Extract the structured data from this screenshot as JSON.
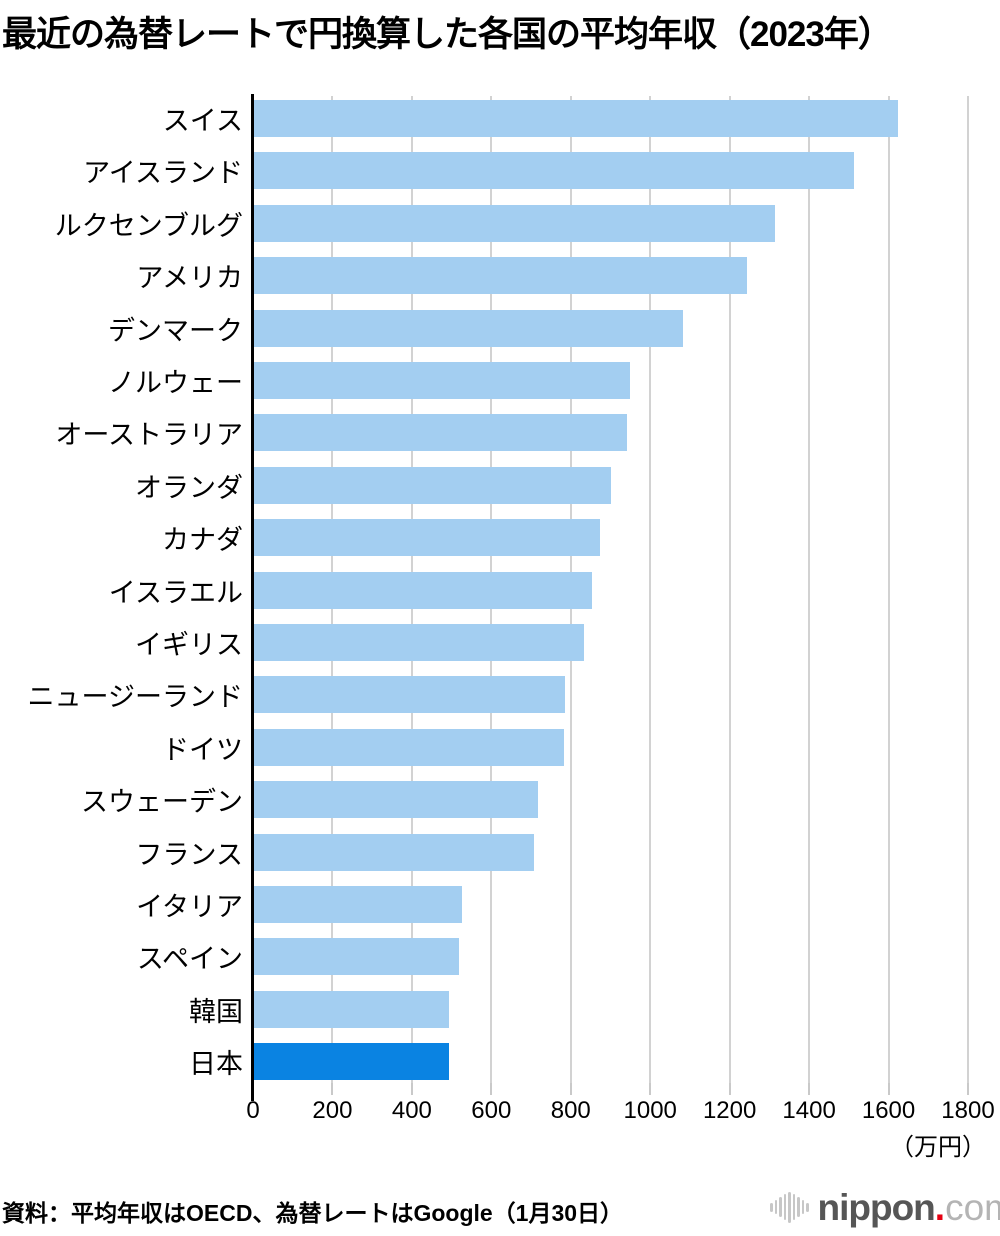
{
  "title": "最近の為替レートで円換算した各国の平均年収（2023年）",
  "source": {
    "text": "資料：平均年収はOECD、為替レートはGoogle（1月30日）"
  },
  "logo": {
    "name": "nippon",
    "dot": ".",
    "tld": "com",
    "icon": "waveform-icon"
  },
  "chart_data": {
    "type": "bar",
    "orientation": "horizontal",
    "title": "最近の為替レートで円換算した各国の平均年収（2023年）",
    "unit": "万円",
    "unit_label": "（万円）",
    "xlim": [
      0,
      1800
    ],
    "xticks": [
      0,
      200,
      400,
      600,
      800,
      1000,
      1200,
      1400,
      1600,
      1800
    ],
    "grid": true,
    "categories": [
      "スイス",
      "アイスランド",
      "ルクセンブルグ",
      "アメリカ",
      "デンマーク",
      "ノルウェー",
      "オーストラリア",
      "オランダ",
      "カナダ",
      "イスラエル",
      "イギリス",
      "ニュージーランド",
      "ドイツ",
      "スウェーデン",
      "フランス",
      "イタリア",
      "スペイン",
      "韓国",
      "日本"
    ],
    "values": [
      1620,
      1510,
      1311,
      1242,
      1079,
      947,
      940,
      898,
      871,
      850,
      831,
      784,
      781,
      714,
      706,
      524,
      517,
      492,
      491
    ],
    "bar_color": "#a3cef1",
    "highlight_color": "#0a83e2",
    "highlight_category": "日本",
    "axis_color": "#000000",
    "grid_color": "#d2d2d2"
  }
}
